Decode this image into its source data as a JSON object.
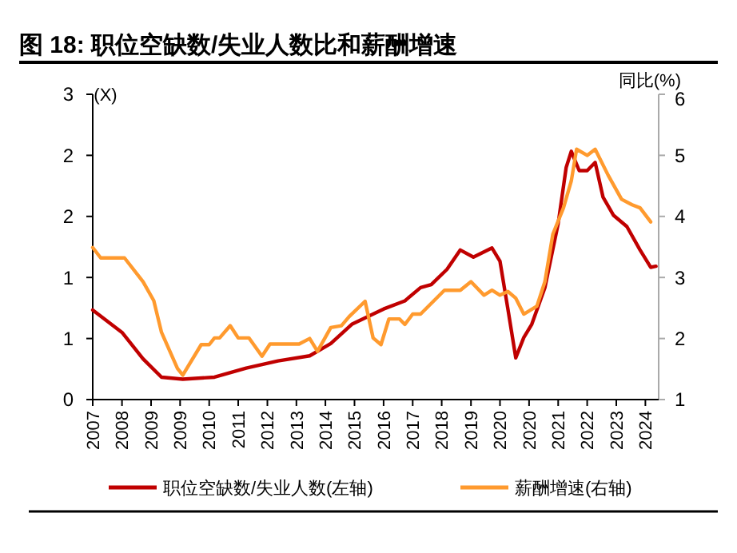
{
  "chart_data": {
    "type": "line",
    "title": "图 18: 职位空缺数/失业人数比和薪酬增速",
    "ylabel": "(X)",
    "y2label": "同比(%)",
    "xlim": [
      "2007-03",
      "2025-01"
    ],
    "xticks": [
      {
        "value": "2007-03",
        "label": "2007"
      },
      {
        "value": "2008-02",
        "label": "2008"
      },
      {
        "value": "2009-01",
        "label": "2009"
      },
      {
        "value": "2009-12",
        "label": "2009"
      },
      {
        "value": "2010-11",
        "label": "2010"
      },
      {
        "value": "2011-10",
        "label": "2011"
      },
      {
        "value": "2012-09",
        "label": "2012"
      },
      {
        "value": "2013-08",
        "label": "2013"
      },
      {
        "value": "2014-07",
        "label": "2014"
      },
      {
        "value": "2015-06",
        "label": "2015"
      },
      {
        "value": "2016-05",
        "label": "2016"
      },
      {
        "value": "2017-04",
        "label": "2017"
      },
      {
        "value": "2018-03",
        "label": "2018"
      },
      {
        "value": "2019-02",
        "label": "2019"
      },
      {
        "value": "2020-01",
        "label": "2020"
      },
      {
        "value": "2020-12",
        "label": "2020"
      },
      {
        "value": "2021-11",
        "label": "2021"
      },
      {
        "value": "2022-10",
        "label": "2022"
      },
      {
        "value": "2023-09",
        "label": "2023"
      },
      {
        "value": "2024-08",
        "label": "2024"
      }
    ],
    "ylim": [
      0,
      3
    ],
    "yticks": [
      {
        "value": 0,
        "label": "0"
      },
      {
        "value": 0.6,
        "label": "1"
      },
      {
        "value": 1.2,
        "label": "1"
      },
      {
        "value": 1.8,
        "label": "2"
      },
      {
        "value": 2.4,
        "label": "2"
      },
      {
        "value": 3,
        "label": "3"
      }
    ],
    "y2lim": [
      1,
      6
    ],
    "y2ticks": [
      1,
      2,
      3,
      4,
      5,
      6
    ],
    "grid": false,
    "legend": "bottom",
    "marker": "none",
    "line_style": "solid",
    "series": [
      {
        "name": "职位空缺数/失业人数(左轴)",
        "color": "#c00000",
        "x": [
          "2007-03",
          "2008-02",
          "2008-10",
          "2009-05",
          "2010-01",
          "2011-01",
          "2012-01",
          "2013-01",
          "2014-01",
          "2014-09",
          "2015-05",
          "2016-01",
          "2016-05",
          "2017-01",
          "2017-07",
          "2017-11",
          "2018-05",
          "2018-10",
          "2019-03",
          "2019-10",
          "2020-01",
          "2020-04",
          "2020-07",
          "2020-10",
          "2021-01",
          "2021-06",
          "2021-11",
          "2022-02",
          "2022-04",
          "2022-07",
          "2022-10",
          "2023-01",
          "2023-04",
          "2023-08",
          "2024-01",
          "2024-06",
          "2024-10",
          "2024-12"
        ],
        "values": [
          0.88,
          0.66,
          0.4,
          0.22,
          0.2,
          0.22,
          0.31,
          0.38,
          0.43,
          0.55,
          0.74,
          0.84,
          0.89,
          0.97,
          1.1,
          1.13,
          1.28,
          1.47,
          1.4,
          1.49,
          1.36,
          0.89,
          0.41,
          0.61,
          0.74,
          1.1,
          1.73,
          2.28,
          2.44,
          2.25,
          2.25,
          2.33,
          1.99,
          1.81,
          1.7,
          1.47,
          1.3,
          1.31
        ]
      },
      {
        "name": "薪酬增速(右轴)",
        "color": "#ff9a2e",
        "axis": "y2",
        "x": [
          "2007-03",
          "2007-06",
          "2008-03",
          "2008-10",
          "2009-02",
          "2009-05",
          "2009-11",
          "2010-01",
          "2010-08",
          "2010-11",
          "2011-01",
          "2011-03",
          "2011-07",
          "2011-10",
          "2012-02",
          "2012-07",
          "2012-10",
          "2013-09",
          "2014-01",
          "2014-04",
          "2014-09",
          "2015-01",
          "2015-04",
          "2015-10",
          "2016-01",
          "2016-04",
          "2016-07",
          "2016-11",
          "2017-01",
          "2017-04",
          "2017-07",
          "2018-04",
          "2018-10",
          "2019-02",
          "2019-07",
          "2019-10",
          "2020-01",
          "2020-04",
          "2020-07",
          "2020-10",
          "2021-03",
          "2021-06",
          "2021-09",
          "2022-01",
          "2022-04",
          "2022-06",
          "2022-10",
          "2023-01",
          "2023-06",
          "2023-11",
          "2024-03",
          "2024-06",
          "2024-10"
        ],
        "values": [
          3.49,
          3.32,
          3.32,
          2.93,
          2.62,
          2.1,
          1.51,
          1.4,
          1.9,
          1.9,
          2.01,
          2.01,
          2.21,
          2.01,
          2.01,
          1.71,
          1.91,
          1.91,
          2.0,
          1.79,
          2.18,
          2.21,
          2.36,
          2.61,
          2.01,
          1.9,
          2.32,
          2.32,
          2.23,
          2.4,
          2.4,
          2.79,
          2.79,
          2.93,
          2.71,
          2.79,
          2.71,
          2.77,
          2.66,
          2.4,
          2.53,
          2.93,
          3.71,
          4.14,
          4.58,
          5.1,
          5.0,
          5.1,
          4.67,
          4.28,
          4.19,
          4.14,
          3.91
        ]
      }
    ]
  }
}
